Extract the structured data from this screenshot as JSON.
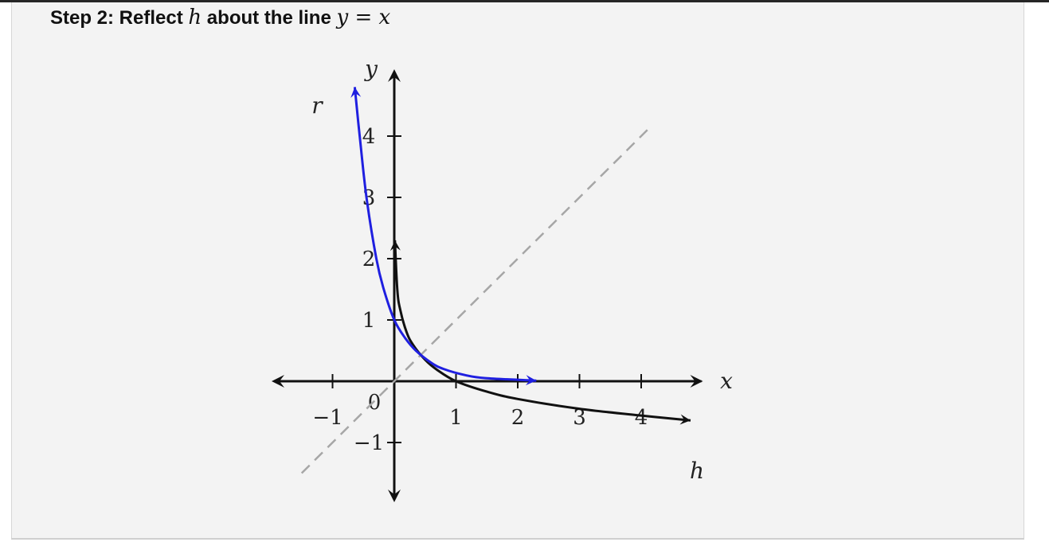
{
  "heading": {
    "prefix": "Step 2: Reflect ",
    "var": "h",
    "middle": " about the line ",
    "eq_lhs": "y",
    "eq_op": " = ",
    "eq_rhs": "x"
  },
  "chart_data": {
    "type": "line",
    "title": "",
    "xlabel": "x",
    "ylabel": "y",
    "xlim": [
      -2,
      5
    ],
    "ylim": [
      -2,
      5
    ],
    "x_ticks": [
      -1,
      0,
      1,
      2,
      3,
      4
    ],
    "y_ticks": [
      -1,
      1,
      2,
      3,
      4
    ],
    "x_tick_labels": [
      "−1",
      "0",
      "1",
      "2",
      "3",
      "4"
    ],
    "y_tick_labels": [
      "−1",
      "1",
      "2",
      "3",
      "4"
    ],
    "grid": false,
    "series": [
      {
        "name": "h",
        "color": "#111111",
        "x": [
          0.01,
          0.05,
          0.1,
          0.2,
          0.3,
          0.5,
          0.7,
          1,
          1.5,
          2,
          3,
          4,
          4.8
        ],
        "y": [
          2.3,
          1.48,
          1.15,
          0.8,
          0.6,
          0.35,
          0.18,
          0,
          -0.17,
          -0.29,
          -0.45,
          -0.56,
          -0.64
        ]
      },
      {
        "name": "r",
        "color": "#1f1fe0",
        "x": [
          -0.64,
          -0.56,
          -0.45,
          -0.29,
          -0.17,
          0,
          0.18,
          0.35,
          0.6,
          0.8,
          1.15,
          1.48,
          2.3
        ],
        "y": [
          4.8,
          4,
          3,
          2,
          1.5,
          1,
          0.7,
          0.5,
          0.3,
          0.2,
          0.1,
          0.05,
          0.01
        ]
      },
      {
        "name": "",
        "style": "dashed",
        "color": "#a6a6a6",
        "x": [
          -1.5,
          4.1
        ],
        "y": [
          -1.5,
          4.1
        ]
      }
    ]
  }
}
